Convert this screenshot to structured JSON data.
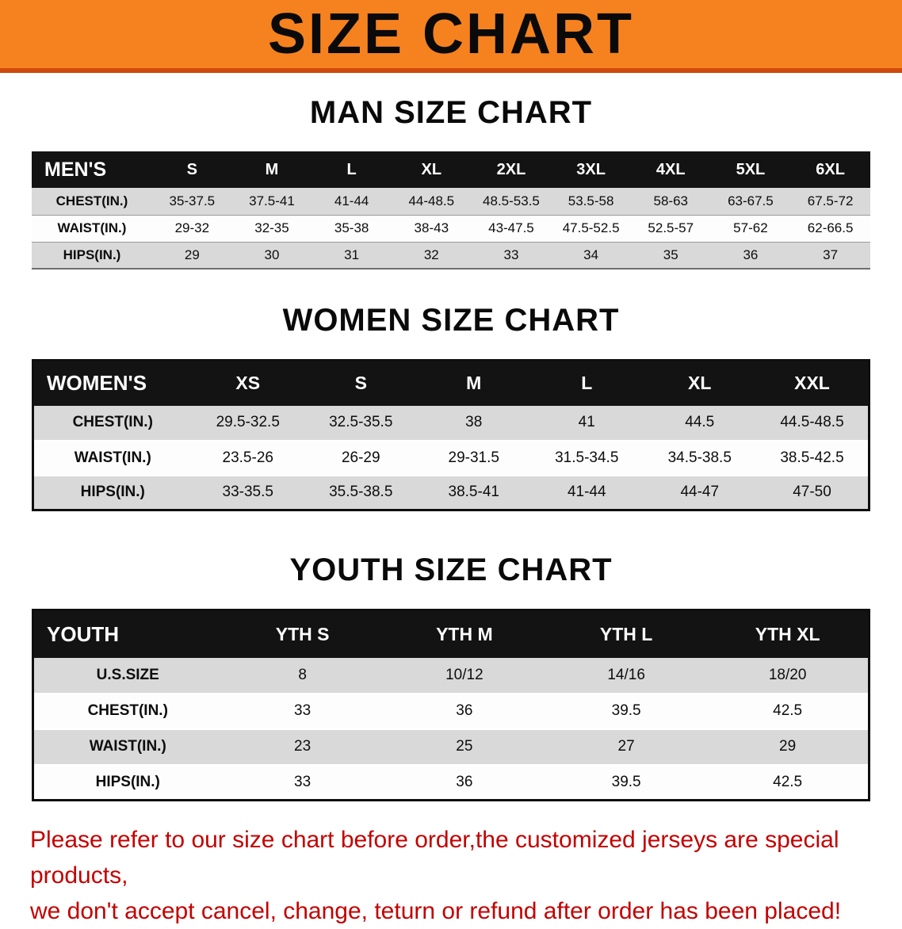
{
  "banner": {
    "title": "SIZE CHART"
  },
  "men": {
    "heading": "MAN SIZE CHART",
    "columns": [
      "MEN'S",
      "S",
      "M",
      "L",
      "XL",
      "2XL",
      "3XL",
      "4XL",
      "5XL",
      "6XL"
    ],
    "rows": [
      [
        "CHEST(IN.)",
        "35-37.5",
        "37.5-41",
        "41-44",
        "44-48.5",
        "48.5-53.5",
        "53.5-58",
        "58-63",
        "63-67.5",
        "67.5-72"
      ],
      [
        "WAIST(IN.)",
        "29-32",
        "32-35",
        "35-38",
        "38-43",
        "43-47.5",
        "47.5-52.5",
        "52.5-57",
        "57-62",
        "62-66.5"
      ],
      [
        "HIPS(IN.)",
        "29",
        "30",
        "31",
        "32",
        "33",
        "34",
        "35",
        "36",
        "37"
      ]
    ]
  },
  "women": {
    "heading": "WOMEN SIZE CHART",
    "columns": [
      "WOMEN'S",
      "XS",
      "S",
      "M",
      "L",
      "XL",
      "XXL"
    ],
    "rows": [
      [
        "CHEST(IN.)",
        "29.5-32.5",
        "32.5-35.5",
        "38",
        "41",
        "44.5",
        "44.5-48.5"
      ],
      [
        "WAIST(IN.)",
        "23.5-26",
        "26-29",
        "29-31.5",
        "31.5-34.5",
        "34.5-38.5",
        "38.5-42.5"
      ],
      [
        "HIPS(IN.)",
        "33-35.5",
        "35.5-38.5",
        "38.5-41",
        "41-44",
        "44-47",
        "47-50"
      ]
    ]
  },
  "youth": {
    "heading": "YOUTH SIZE CHART",
    "columns": [
      "YOUTH",
      "YTH S",
      "YTH M",
      "YTH L",
      "YTH XL"
    ],
    "rows": [
      [
        "U.S.SIZE",
        "8",
        "10/12",
        "14/16",
        "18/20"
      ],
      [
        "CHEST(IN.)",
        "33",
        "36",
        "39.5",
        "42.5"
      ],
      [
        "WAIST(IN.)",
        "23",
        "25",
        "27",
        "29"
      ],
      [
        "HIPS(IN.)",
        "33",
        "36",
        "39.5",
        "42.5"
      ]
    ]
  },
  "disclaimer": {
    "line1": "Please refer to our size chart before order,the customized jerseys are special products,",
    "line2": "we don't accept cancel, change, teturn or refund after order has been placed!"
  },
  "colors": {
    "banner_bg": "#f6821f",
    "banner_line": "#cf4a0c",
    "table_header_bg": "#131313",
    "row_shaded": "#d9d9d9",
    "disclaimer_text": "#c40000"
  }
}
